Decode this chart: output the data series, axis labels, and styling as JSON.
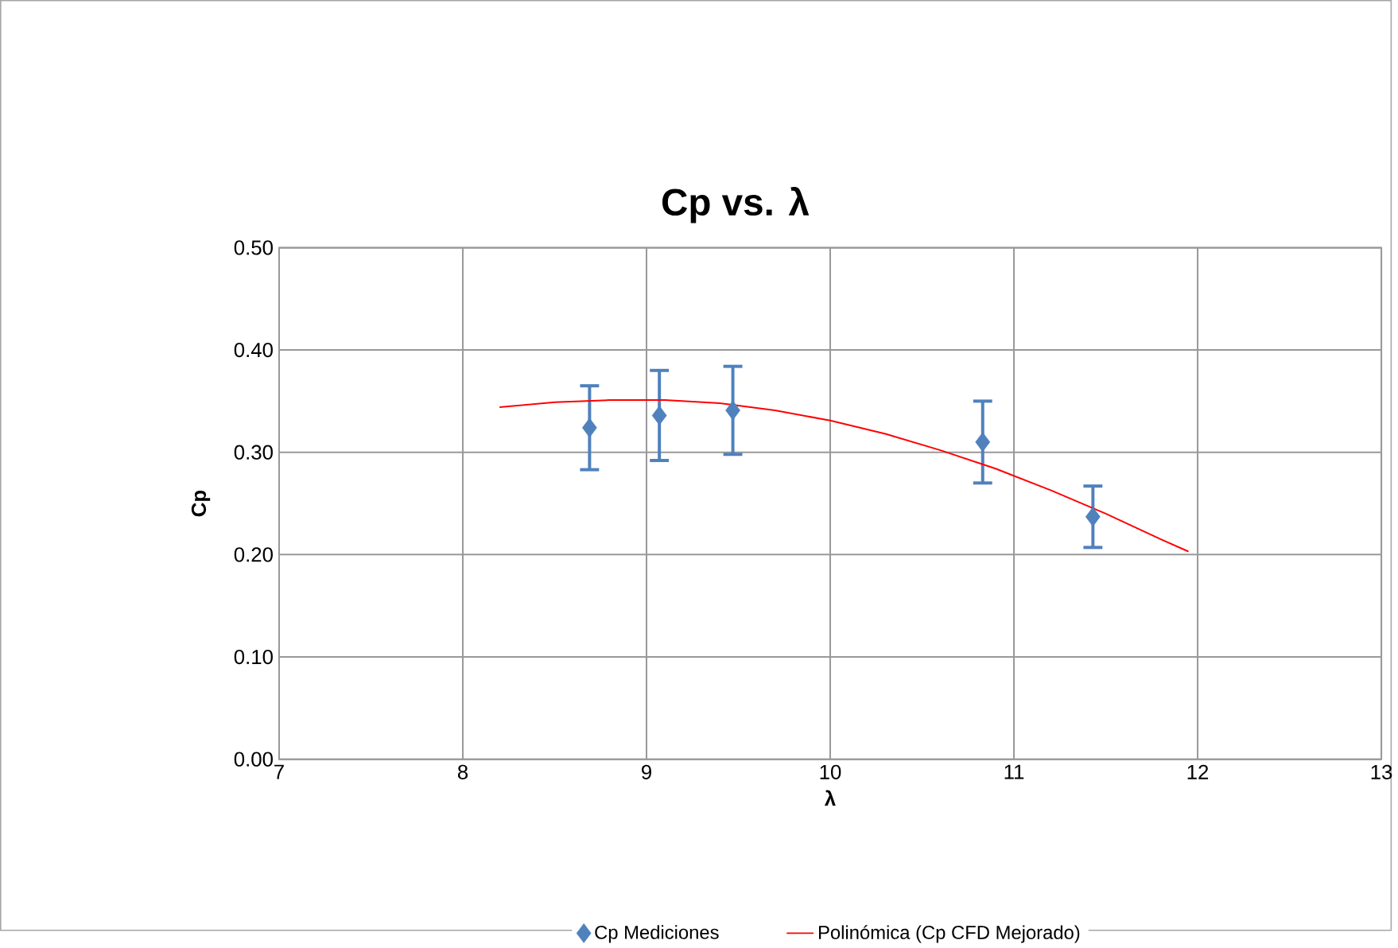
{
  "chart_data": {
    "type": "scatter",
    "title": "Cp vs. λ",
    "xlabel": "λ",
    "ylabel": "Cp",
    "xlim": [
      7,
      13
    ],
    "xticks": [
      7,
      8,
      9,
      10,
      11,
      12,
      13
    ],
    "ylim": [
      0,
      0.5
    ],
    "yticks": [
      {
        "value": 0,
        "label": "0.00"
      },
      {
        "value": 0.1,
        "label": "0.10"
      },
      {
        "value": 0.2,
        "label": "0.20"
      },
      {
        "value": 0.3,
        "label": "0.30"
      },
      {
        "value": 0.4,
        "label": "0.40"
      },
      {
        "value": 0.5,
        "label": "0.50"
      }
    ],
    "grid": true,
    "legend": "bottom",
    "series": [
      {
        "name": "Cp Mediciones",
        "marker": "diamond",
        "color": "#4f81bd",
        "x": [
          8.69,
          9.07,
          9.47,
          10.83,
          11.43
        ],
        "values": [
          0.324,
          0.336,
          0.341,
          0.31,
          0.237
        ],
        "errors": [
          0.041,
          0.044,
          0.043,
          0.04,
          0.03
        ]
      },
      {
        "name": "Polinómica (Cp CFD Mejorado)",
        "type": "line",
        "marker": "none",
        "color": "#ff0000",
        "x": [
          8.2,
          8.5,
          8.8,
          9.1,
          9.4,
          9.7,
          10.0,
          10.3,
          10.6,
          10.9,
          11.2,
          11.5,
          11.8,
          11.95
        ],
        "values": [
          0.344,
          0.349,
          0.351,
          0.351,
          0.348,
          0.341,
          0.331,
          0.318,
          0.302,
          0.284,
          0.263,
          0.24,
          0.215,
          0.203
        ]
      }
    ]
  }
}
